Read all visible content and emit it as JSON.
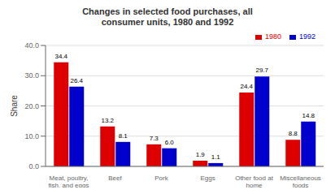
{
  "chart_data": {
    "type": "bar",
    "title": "Changes in selected food purchases, all\nconsumer units, 1980 and 1992",
    "categories": [
      "Meat, poultry,\nfish, and eggs",
      "Beef",
      "Pork",
      "Eggs",
      "Other food at\nhome",
      "Miscellaneous\nfoods"
    ],
    "series": [
      {
        "name": "1980",
        "color": "#dd0000",
        "values": [
          34.4,
          13.2,
          7.3,
          1.9,
          24.4,
          8.8
        ]
      },
      {
        "name": "1992",
        "color": "#0000cc",
        "values": [
          26.4,
          8.1,
          6.0,
          1.1,
          29.7,
          14.8
        ],
        "value_labels": [
          "26.4",
          "8.1",
          "6.0",
          "1.1",
          "29.7",
          "14.8"
        ]
      }
    ],
    "y_label": "Share",
    "ylim": [
      0,
      40
    ],
    "yticks": [
      {
        "value": 0,
        "label": "0.0"
      },
      {
        "value": 10,
        "label": "10.0"
      },
      {
        "value": 20,
        "label": "20.0"
      },
      {
        "value": 30,
        "label": "30.0"
      },
      {
        "value": 40,
        "label": "40.0"
      }
    ],
    "grid": true,
    "legend": "upper right",
    "data_labels": true
  }
}
